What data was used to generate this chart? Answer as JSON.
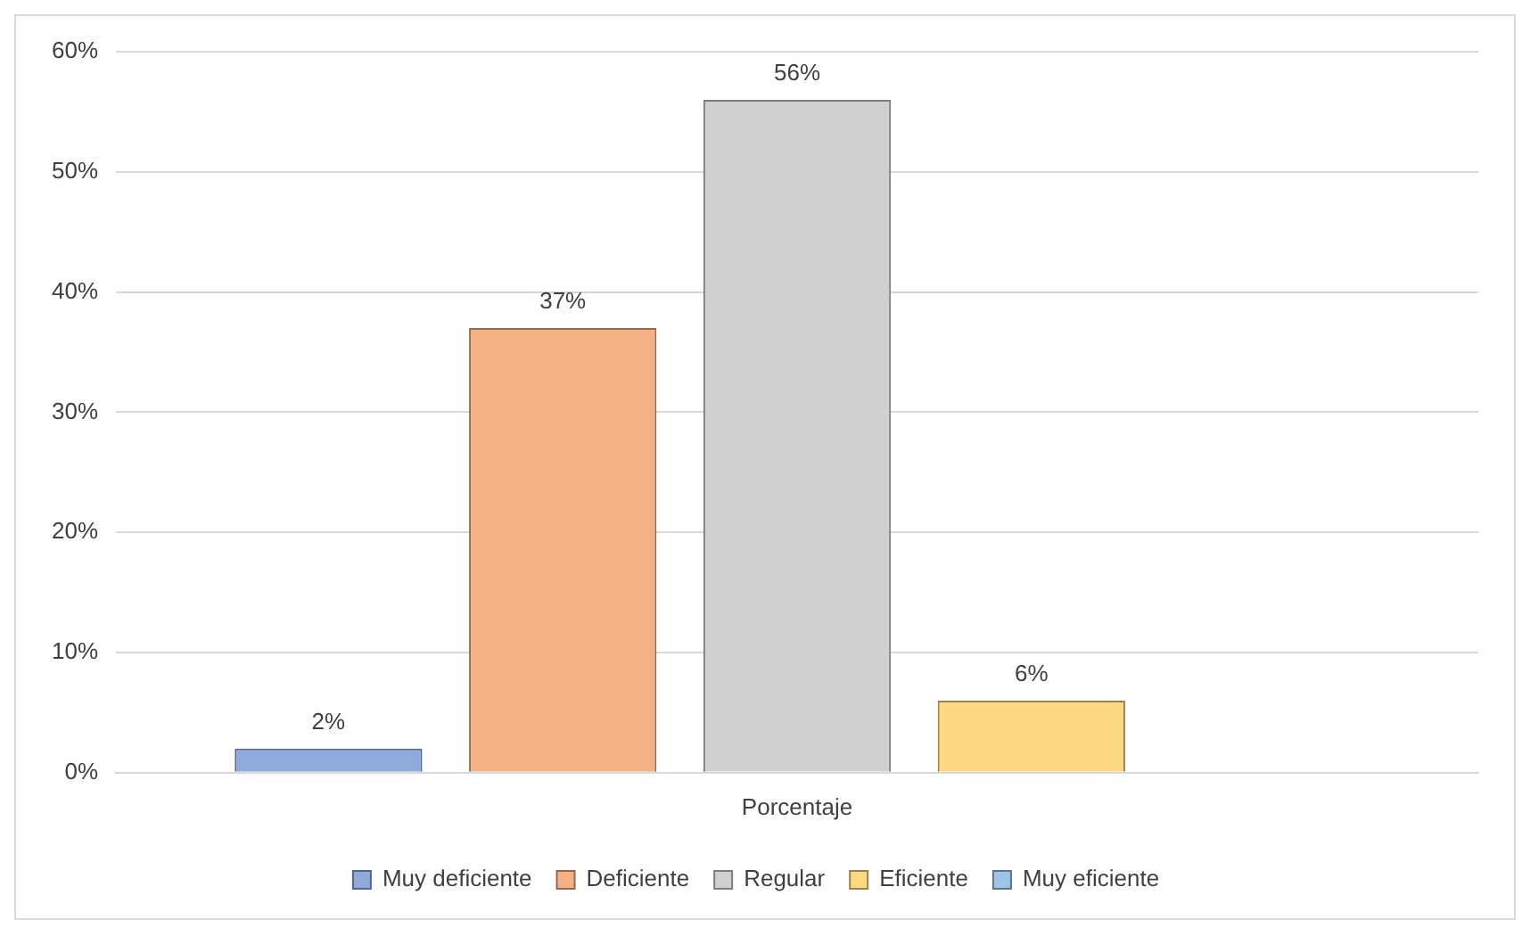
{
  "chart_data": {
    "type": "bar",
    "categories": [
      "Porcentaje"
    ],
    "series": [
      {
        "name": "Muy deficiente",
        "color": "#8faadc",
        "values": [
          2
        ],
        "value_labels": [
          "2%"
        ]
      },
      {
        "name": "Deficiente",
        "color": "#f4b183",
        "values": [
          37
        ],
        "value_labels": [
          "37%"
        ]
      },
      {
        "name": "Regular",
        "color": "#d0d0d0",
        "values": [
          56
        ],
        "value_labels": [
          "56%"
        ]
      },
      {
        "name": "Eficiente",
        "color": "#ffd97f",
        "values": [
          6
        ],
        "value_labels": [
          "6%"
        ]
      },
      {
        "name": "Muy eficiente",
        "color": "#9dc3e6",
        "values": [
          null
        ],
        "value_labels": [
          null
        ]
      }
    ],
    "ylim": [
      0,
      60
    ],
    "yticks": [
      {
        "value": 0,
        "label": "0%"
      },
      {
        "value": 10,
        "label": "10%"
      },
      {
        "value": 20,
        "label": "20%"
      },
      {
        "value": 30,
        "label": "30%"
      },
      {
        "value": 40,
        "label": "40%"
      },
      {
        "value": 50,
        "label": "50%"
      },
      {
        "value": 60,
        "label": "60%"
      }
    ],
    "grid": "y",
    "legend": "bottom"
  }
}
